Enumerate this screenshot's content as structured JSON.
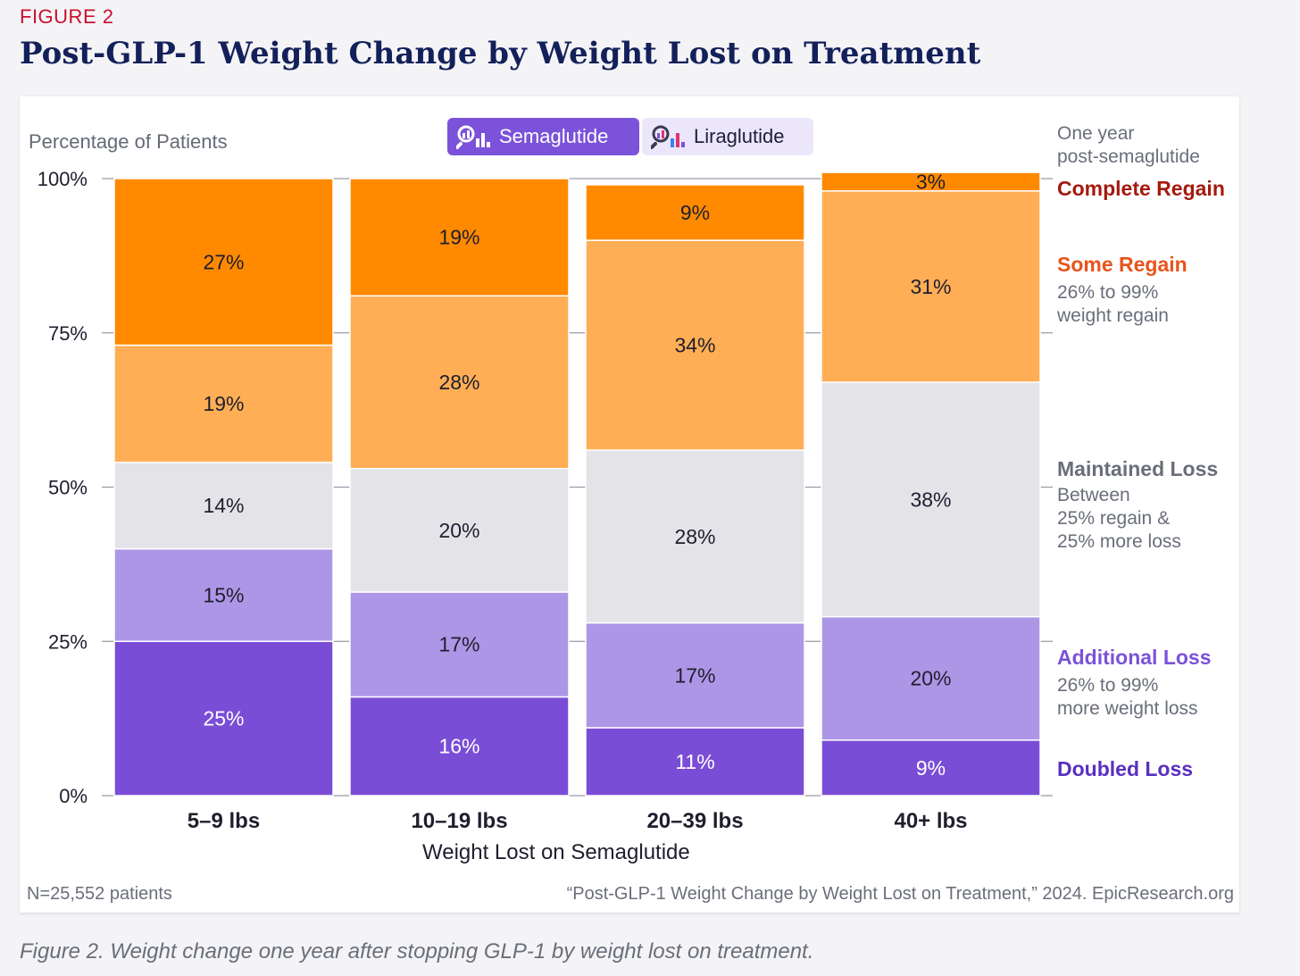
{
  "figure_label": "FIGURE 2",
  "title": "Post-GLP-1 Weight Change by Weight Lost on Treatment",
  "toggles": [
    {
      "label": "Semaglutide",
      "selected": true
    },
    {
      "label": "Liraglutide",
      "selected": false
    }
  ],
  "legend": {
    "header_line1": "One year",
    "header_line2": "post-semaglutide",
    "items": [
      {
        "title": "Complete Regain",
        "color": "#a31a0e",
        "desc": []
      },
      {
        "title": "Some Regain",
        "color": "#e8541a",
        "desc": [
          "26% to 99%",
          "weight regain"
        ]
      },
      {
        "title": "Maintained Loss",
        "color": "#6a6e7a",
        "desc": [
          "Between",
          "25% regain &",
          "25% more loss"
        ]
      },
      {
        "title": "Additional Loss",
        "color": "#7b52d9",
        "desc": [
          "26% to 99%",
          "more weight loss"
        ]
      },
      {
        "title": "Doubled Loss",
        "color": "#5a2fc2",
        "desc": []
      }
    ]
  },
  "footer_note": "N=25,552 patients",
  "source": "“Post-GLP-1 Weight Change by Weight Lost on Treatment,” 2024. EpicResearch.org",
  "caption": "Figure 2. Weight change one year after stopping GLP-1 by weight lost on treatment.",
  "chart_data": {
    "type": "bar",
    "stacked": true,
    "ylabel": "Percentage of Patients",
    "xlabel": "Weight Lost on Semaglutide",
    "ylim": [
      0,
      100
    ],
    "yticks": [
      "0%",
      "25%",
      "50%",
      "75%",
      "100%"
    ],
    "ytick_values": [
      0,
      25,
      50,
      75,
      100
    ],
    "grid": false,
    "categories": [
      "5–9 lbs",
      "10–19 lbs",
      "20–39 lbs",
      "40+ lbs"
    ],
    "series": [
      {
        "name": "Doubled Loss",
        "color": "#7a4dd6",
        "label_color": "#ffffff",
        "values": [
          25,
          16,
          11,
          9
        ],
        "labels": [
          "25%",
          "16%",
          "11%",
          "9%"
        ]
      },
      {
        "name": "Additional Loss",
        "color": "#ae96e6",
        "label_color": "#1e1e2e",
        "values": [
          15,
          17,
          17,
          20
        ],
        "labels": [
          "15%",
          "17%",
          "17%",
          "20%"
        ]
      },
      {
        "name": "Maintained Loss",
        "color": "#e3e3e8",
        "label_color": "#1e1e2e",
        "values": [
          14,
          20,
          28,
          38
        ],
        "labels": [
          "14%",
          "20%",
          "28%",
          "38%"
        ]
      },
      {
        "name": "Some Regain",
        "color": "#ffae55",
        "label_color": "#1e1e2e",
        "values": [
          19,
          28,
          34,
          31
        ],
        "labels": [
          "19%",
          "28%",
          "34%",
          "31%"
        ]
      },
      {
        "name": "Complete Regain",
        "color": "#ff8a00",
        "label_color": "#1e1e2e",
        "values": [
          27,
          19,
          9,
          3
        ],
        "labels": [
          "27%",
          "19%",
          "9%",
          "3%"
        ]
      }
    ]
  }
}
